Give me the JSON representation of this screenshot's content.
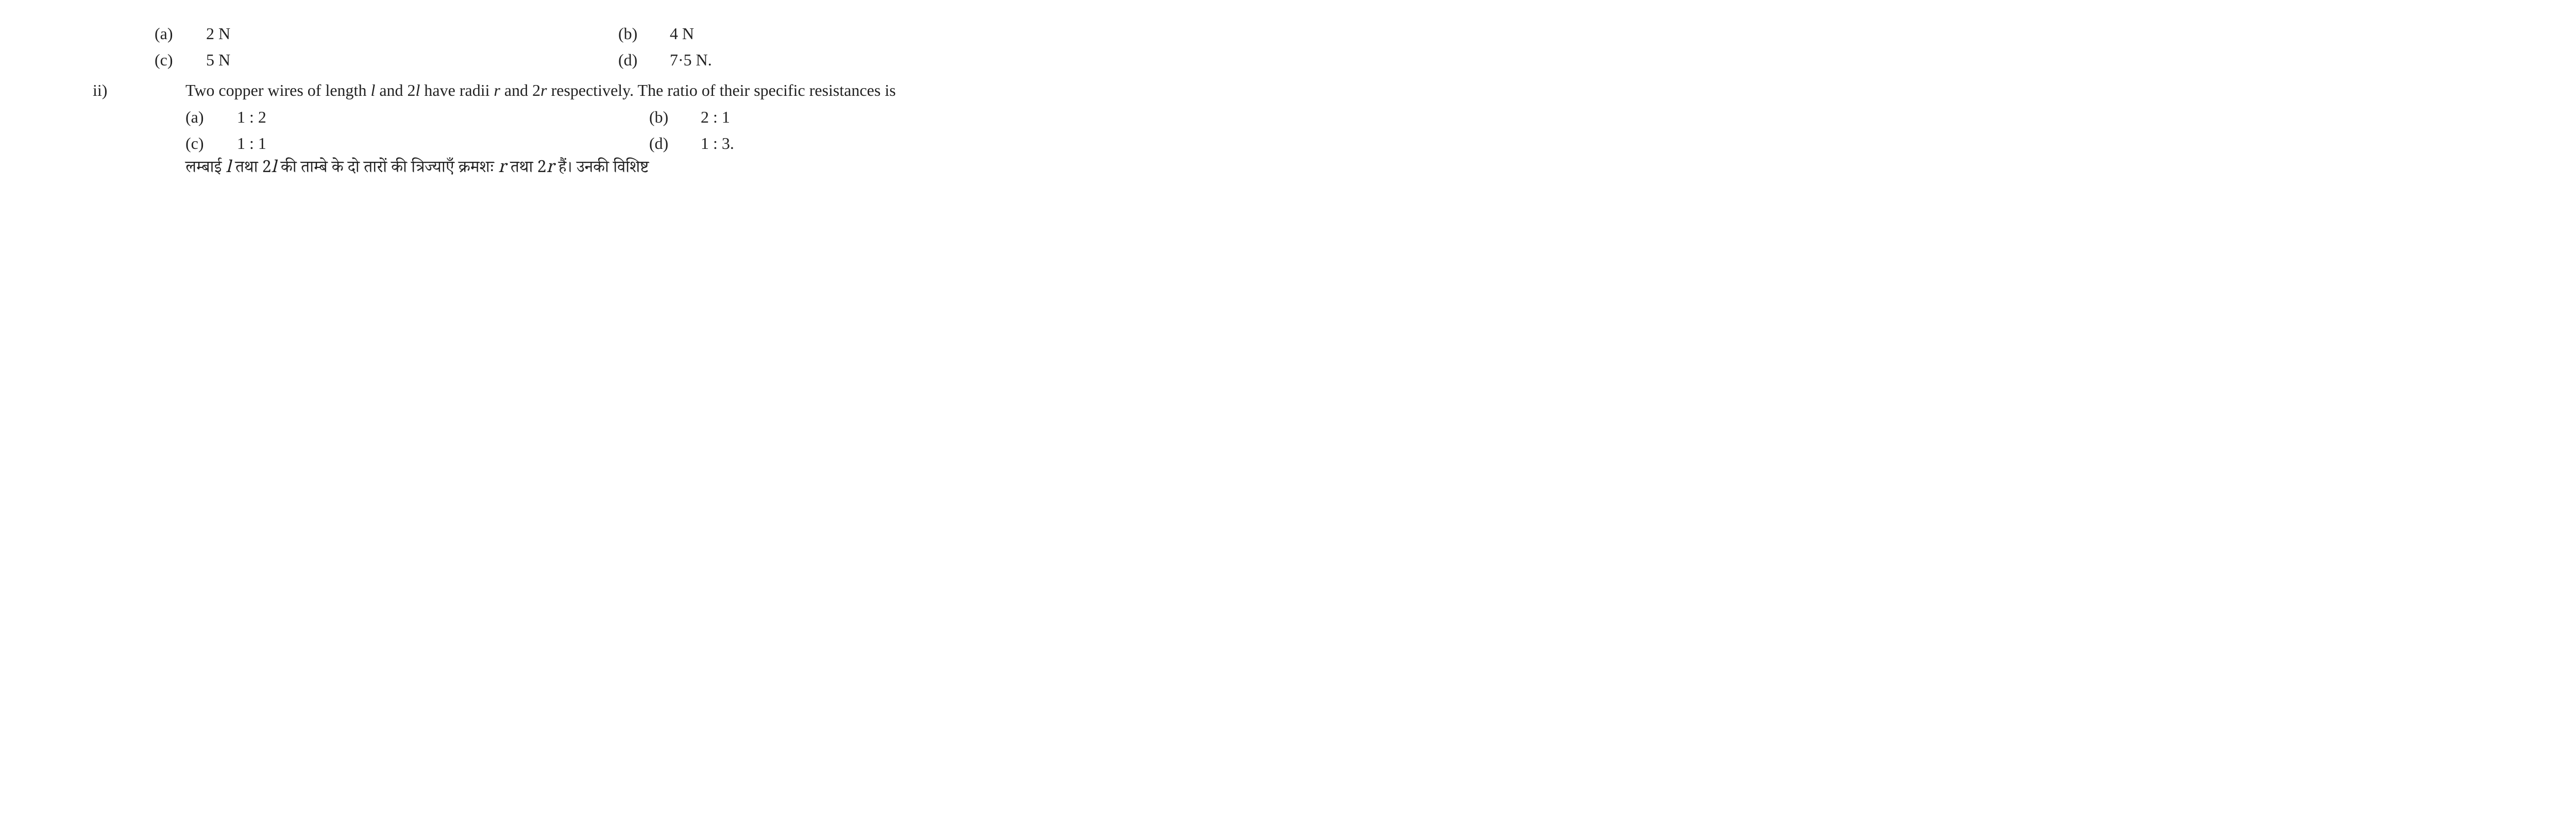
{
  "q1_options": {
    "a_label": "(a)",
    "a_text": "2 N",
    "b_label": "(b)",
    "b_text": "4 N",
    "c_label": "(c)",
    "c_text": "5 N",
    "d_label": "(d)",
    "d_text": "7·5 N."
  },
  "q2": {
    "number": "ii)",
    "text_en_pre": "Two copper wires of length ",
    "var_l1": "l",
    "text_en_mid1": " and 2",
    "var_l2": "l",
    "text_en_mid2": " have radii ",
    "var_r1": "r",
    "text_en_mid3": " and 2",
    "var_r2": "r",
    "text_en_post": " respectively. The ratio of their specific resistances is",
    "options": {
      "a_label": "(a)",
      "a_text": "1 : 2",
      "b_label": "(b)",
      "b_text": "2 : 1",
      "c_label": "(c)",
      "c_text": "1 : 1",
      "d_label": "(d)",
      "d_text": "1 : 3."
    },
    "hindi_pre": "लम्बाई ",
    "hindi_var_l1": "l",
    "hindi_mid1": " तथा 2",
    "hindi_var_l2": "l",
    "hindi_mid2": " की ताम्बे के दो तारों की त्रिज्याएँ क्रमशः ",
    "hindi_var_r1": "r",
    "hindi_mid3": " तथा 2",
    "hindi_var_r2": "r",
    "hindi_post": " हैं। उनकी विशिष्ट"
  },
  "colors": {
    "text": "#222222",
    "background": "#ffffff"
  },
  "typography": {
    "body_fontsize_pt": 24,
    "font_family": "Times New Roman"
  }
}
